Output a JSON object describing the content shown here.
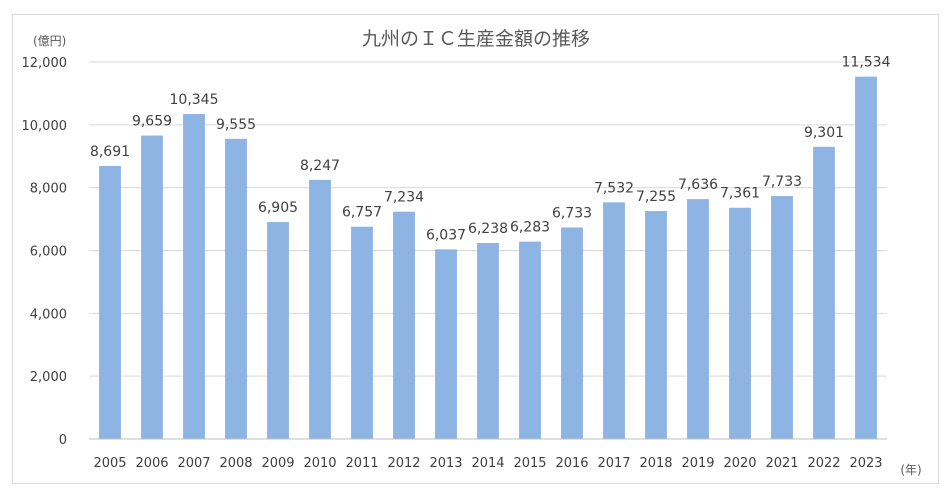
{
  "chart_data": {
    "type": "bar",
    "title": "九州のＩＣ生産金額の推移",
    "ylabel": "(億円)",
    "xlabel": "(年)",
    "ylim": [
      0,
      12000
    ],
    "yticks": [
      "0",
      "2,000",
      "4,000",
      "6,000",
      "8,000",
      "10,000",
      "12,000"
    ],
    "grid": true,
    "legend": "none",
    "bar_color": "#8eb4e3",
    "categories": [
      "2005",
      "2006",
      "2007",
      "2008",
      "2009",
      "2010",
      "2011",
      "2012",
      "2013",
      "2014",
      "2015",
      "2016",
      "2017",
      "2018",
      "2019",
      "2020",
      "2021",
      "2022",
      "2023"
    ],
    "values": [
      8691,
      9659,
      10345,
      9555,
      6905,
      8247,
      6757,
      7234,
      6037,
      6238,
      6283,
      6733,
      7532,
      7255,
      7636,
      7361,
      7733,
      9301,
      11534
    ],
    "data_labels": [
      "8,691",
      "9,659",
      "10,345",
      "9,555",
      "6,905",
      "8,247",
      "6,757",
      "7,234",
      "6,037",
      "6,238",
      "6,283",
      "6,733",
      "7,532",
      "7,255",
      "7,636",
      "7,361",
      "7,733",
      "9,301",
      "11,534"
    ]
  }
}
